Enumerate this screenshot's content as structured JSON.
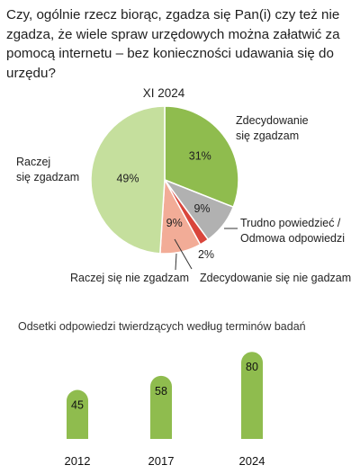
{
  "question": "Czy, ogólnie rzecz biorąc, zgadza się Pan(i) czy też nie zgadza, że wiele spraw urzędowych można załatwić za pomocą internetu – bez konieczności udawania się do urzędu?",
  "chart_data": [
    {
      "type": "pie",
      "title": "XI 2024",
      "slices": [
        {
          "label": [
            "Zdecydowanie",
            "się zgadzam"
          ],
          "value": 31,
          "value_label": "31%",
          "color": "#8fbc4e"
        },
        {
          "label": [
            "Trudno powiedzieć /",
            "Odmowa odpowiedzi"
          ],
          "value": 9,
          "value_label": "9%",
          "color": "#b1b1b1"
        },
        {
          "label": [
            "Zdecydowanie się nie gadzam"
          ],
          "value": 2,
          "value_label": "2%",
          "color": "#d9453b"
        },
        {
          "label": [
            "Raczej się nie zgadzam"
          ],
          "value": 9,
          "value_label": "9%",
          "color": "#f2ac97"
        },
        {
          "label": [
            "Raczej",
            "się zgadzam"
          ],
          "value": 49,
          "value_label": "49%",
          "color": "#c5df9d"
        }
      ]
    },
    {
      "type": "bar",
      "title": "Odsetki odpowiedzi twierdzących według terminów badań",
      "categories": [
        "2012",
        "2017",
        "2024"
      ],
      "values": [
        45,
        58,
        80
      ],
      "color": "#8fbc4e"
    }
  ]
}
